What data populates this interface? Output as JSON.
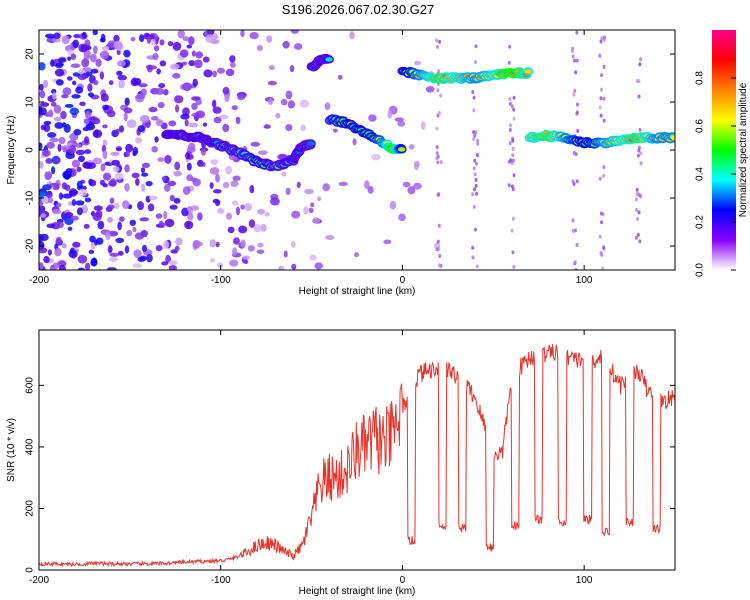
{
  "title": "S196.2026.067.02.30.G27",
  "chart_data": [
    {
      "type": "heatmap",
      "xlabel": "Height of straight line (km)",
      "ylabel": "Frequency (Hz)",
      "xlim": [
        -200,
        150
      ],
      "ylim": [
        -25,
        25
      ],
      "xticks": [
        "-200",
        "-100",
        "0",
        "100"
      ],
      "yticks": [
        "-20",
        "-10",
        "0",
        "10",
        "20"
      ],
      "colorbar": {
        "label": "Normalized spectral amplitude",
        "range": [
          0,
          1
        ],
        "ticks": [
          "0.0",
          "0.2",
          "0.4",
          "0.6",
          "0.8"
        ],
        "colors": [
          "#ffffff",
          "#8a00ff",
          "#0000ff",
          "#00ffff",
          "#00ff00",
          "#ffff00",
          "#ff8000",
          "#ff0000",
          "#ff0090"
        ]
      },
      "ridge": [
        {
          "x": -130,
          "y": 3.5,
          "a": 0.35
        },
        {
          "x": -120,
          "y": 3.0,
          "a": 0.45
        },
        {
          "x": -110,
          "y": 2.5,
          "a": 0.4
        },
        {
          "x": -100,
          "y": 1.0,
          "a": 0.45
        },
        {
          "x": -90,
          "y": -0.5,
          "a": 0.5
        },
        {
          "x": -80,
          "y": -2.5,
          "a": 0.55
        },
        {
          "x": -70,
          "y": -3.5,
          "a": 0.5
        },
        {
          "x": -60,
          "y": -2.0,
          "a": 0.4
        },
        {
          "x": -55,
          "y": 1.0,
          "a": 0.45
        },
        {
          "x": -50,
          "y": 17.0,
          "a": 0.5
        },
        {
          "x": -45,
          "y": 19.0,
          "a": 0.45
        },
        {
          "x": -40,
          "y": 6.5,
          "a": 0.55
        },
        {
          "x": -30,
          "y": 5.5,
          "a": 0.6
        },
        {
          "x": -20,
          "y": 3.5,
          "a": 0.6
        },
        {
          "x": -10,
          "y": 1.5,
          "a": 0.7
        },
        {
          "x": -5,
          "y": 0.0,
          "a": 0.85
        },
        {
          "x": 0,
          "y": 16.5,
          "a": 0.6
        },
        {
          "x": 10,
          "y": 15.5,
          "a": 0.7
        },
        {
          "x": 20,
          "y": 15.0,
          "a": 0.8
        },
        {
          "x": 30,
          "y": 15.0,
          "a": 0.75
        },
        {
          "x": 40,
          "y": 15.0,
          "a": 0.7
        },
        {
          "x": 50,
          "y": 15.5,
          "a": 0.75
        },
        {
          "x": 60,
          "y": 16.0,
          "a": 0.85
        },
        {
          "x": 70,
          "y": 2.5,
          "a": 0.75
        },
        {
          "x": 80,
          "y": 3.0,
          "a": 0.8
        },
        {
          "x": 90,
          "y": 2.5,
          "a": 0.7
        },
        {
          "x": 100,
          "y": 1.5,
          "a": 0.6
        },
        {
          "x": 110,
          "y": 1.5,
          "a": 0.7
        },
        {
          "x": 120,
          "y": 2.0,
          "a": 0.75
        },
        {
          "x": 130,
          "y": 2.5,
          "a": 0.8
        },
        {
          "x": 140,
          "y": 2.5,
          "a": 0.7
        },
        {
          "x": 150,
          "y": 2.5,
          "a": 0.7
        }
      ]
    },
    {
      "type": "line",
      "xlabel": "Height of straight line (km)",
      "ylabel": "SNR (10 * v/v)",
      "xlim": [
        -200,
        150
      ],
      "ylim": [
        0,
        780
      ],
      "xticks": [
        "-200",
        "-100",
        "0",
        "100"
      ],
      "yticks": [
        "0",
        "200",
        "400",
        "600"
      ],
      "color": "#e8332a",
      "series": [
        {
          "name": "SNR",
          "x": [
            -200,
            -190,
            -180,
            -170,
            -160,
            -150,
            -140,
            -130,
            -120,
            -110,
            -100,
            -95,
            -90,
            -85,
            -80,
            -75,
            -70,
            -65,
            -60,
            -55,
            -50,
            -45,
            -40,
            -35,
            -30,
            -25,
            -20,
            -15,
            -10,
            -5,
            0,
            5,
            10,
            15,
            20,
            25,
            30,
            35,
            40,
            45,
            50,
            55,
            60,
            65,
            70,
            75,
            80,
            85,
            90,
            95,
            100,
            105,
            110,
            115,
            120,
            125,
            130,
            135,
            140,
            145,
            150
          ],
          "y": [
            20,
            20,
            18,
            22,
            20,
            20,
            20,
            22,
            25,
            28,
            30,
            35,
            45,
            60,
            80,
            90,
            80,
            60,
            45,
            80,
            170,
            280,
            300,
            300,
            330,
            390,
            400,
            430,
            410,
            440,
            520,
            600,
            640,
            650,
            660,
            650,
            630,
            600,
            560,
            470,
            380,
            380,
            620,
            660,
            690,
            700,
            700,
            710,
            700,
            680,
            690,
            680,
            700,
            650,
            600,
            620,
            650,
            580,
            560,
            550,
            560
          ]
        }
      ],
      "dips": [
        {
          "x": 5,
          "y": 80
        },
        {
          "x": 22,
          "y": 130
        },
        {
          "x": 33,
          "y": 120
        },
        {
          "x": 48,
          "y": 60
        },
        {
          "x": 62,
          "y": 130
        },
        {
          "x": 75,
          "y": 150
        },
        {
          "x": 88,
          "y": 140
        },
        {
          "x": 102,
          "y": 150
        },
        {
          "x": 112,
          "y": 110
        },
        {
          "x": 125,
          "y": 140
        },
        {
          "x": 140,
          "y": 120
        }
      ]
    }
  ]
}
